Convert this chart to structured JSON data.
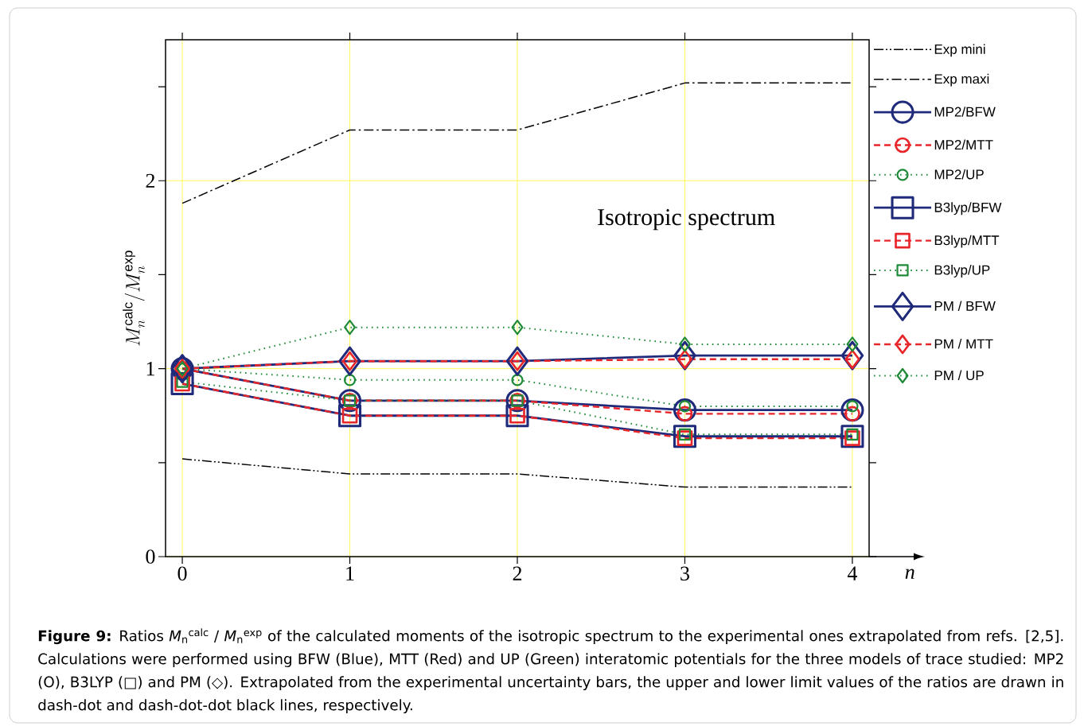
{
  "chart_data": {
    "type": "line",
    "xlabel": "n",
    "ylabel": "M_n^{\\mathrm{calc}}/M_n^{\\mathrm{exp}}",
    "x": [
      0,
      1,
      2,
      3,
      4
    ],
    "xlim": [
      -0.1,
      4.1
    ],
    "xticks": [
      0,
      1,
      2,
      3,
      4
    ],
    "ylim": [
      0,
      2.75
    ],
    "yticks": [
      0,
      {
        "value": 0.5,
        "label": null
      },
      1,
      {
        "value": 1.5,
        "label": null
      },
      2,
      {
        "value": 2.5,
        "label": null
      }
    ],
    "grid": true,
    "legend": "right",
    "series": [
      {
        "name": "Exp mini",
        "color": "#000000",
        "marker": "none",
        "line_style": "dashdotdot",
        "values": [
          0.52,
          0.44,
          0.44,
          0.37,
          0.37
        ]
      },
      {
        "name": "Exp maxi",
        "color": "#000000",
        "marker": "none",
        "line_style": "dashdot",
        "values": [
          1.88,
          2.27,
          2.27,
          2.52,
          2.52
        ]
      },
      {
        "name": "MP2/BFW",
        "color": "#1f2a7a",
        "marker": "circle",
        "line_style": "solid",
        "values": [
          1.0,
          0.83,
          0.83,
          0.78,
          0.78
        ]
      },
      {
        "name": "MP2/MTT",
        "color": "#e8262a",
        "marker": "circle",
        "line_style": "dashed",
        "values": [
          1.0,
          0.83,
          0.83,
          0.76,
          0.76
        ]
      },
      {
        "name": "MP2/UP",
        "color": "#1e8a38",
        "marker": "circle",
        "line_style": "dotted",
        "values": [
          1.0,
          0.94,
          0.94,
          0.8,
          0.8
        ]
      },
      {
        "name": "B3lyp/BFW",
        "color": "#1f2a7a",
        "marker": "square",
        "line_style": "solid",
        "values": [
          0.92,
          0.75,
          0.75,
          0.64,
          0.64
        ]
      },
      {
        "name": "B3lyp/MTT",
        "color": "#e8262a",
        "marker": "square",
        "line_style": "dashed",
        "values": [
          0.92,
          0.75,
          0.75,
          0.63,
          0.63
        ]
      },
      {
        "name": "B3lyp/UP",
        "color": "#1e8a38",
        "marker": "square",
        "line_style": "dotted",
        "values": [
          0.93,
          0.83,
          0.83,
          0.65,
          0.65
        ]
      },
      {
        "name": "PM / BFW",
        "color": "#1f2a7a",
        "marker": "diamond",
        "line_style": "solid",
        "values": [
          1.0,
          1.04,
          1.04,
          1.07,
          1.07
        ]
      },
      {
        "name": "PM / MTT",
        "color": "#e8262a",
        "marker": "diamond",
        "line_style": "dashed",
        "values": [
          1.0,
          1.04,
          1.04,
          1.05,
          1.05
        ]
      },
      {
        "name": "PM / UP",
        "color": "#1e8a38",
        "marker": "diamond",
        "line_style": "dotted",
        "values": [
          1.0,
          1.22,
          1.22,
          1.13,
          1.13
        ]
      }
    ],
    "annotations": [
      "Isotropic spectrum",
      "**Figure 9:** Ratios *M*$_{n}$$^{calc}$ / *M*$_{n}$$^{exp}$ of the calculated moments of the isotropic spectrum to the experimental ones extrapolated from refs. [2,5]. Calculations were performed using BFW (Blue), MTT (Red) and UP (Green) interatomic potentials for the three models of trace studied: MP2 (O), B3LYP (□) and PM (◇). Extrapolated from the experimental uncertainty bars, the upper and lower limit values of the ratios are drawn in dash-dot and dash-dot-dot black lines, respectively."
    ]
  }
}
